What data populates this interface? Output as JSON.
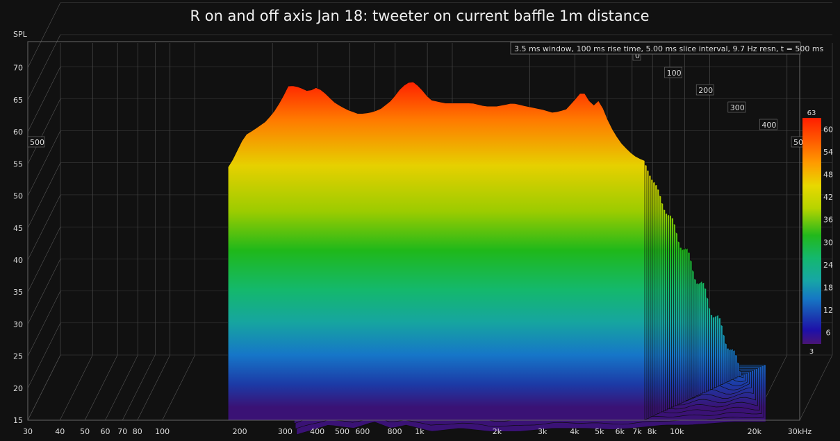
{
  "chart_data": {
    "type": "waterfall",
    "title": "R on and off axis Jan 18: tweeter on current baffle 1m distance",
    "ylabel": "SPL",
    "info_text": "3.5 ms window, 100 ms rise time, 5.00 ms slice interval, 9.7 Hz resn, t = 500 ms",
    "x_unit": "kHz",
    "x_scale": "log",
    "xlim": [
      30,
      30000
    ],
    "ylim": [
      15,
      73
    ],
    "x_ticks": [
      {
        "v": 30,
        "label": "30"
      },
      {
        "v": 40,
        "label": "40"
      },
      {
        "v": 50,
        "label": "50"
      },
      {
        "v": 60,
        "label": "60"
      },
      {
        "v": 70,
        "label": "70"
      },
      {
        "v": 80,
        "label": "80"
      },
      {
        "v": 100,
        "label": "100"
      },
      {
        "v": 200,
        "label": "200"
      },
      {
        "v": 300,
        "label": "300"
      },
      {
        "v": 400,
        "label": "400"
      },
      {
        "v": 500,
        "label": "500"
      },
      {
        "v": 600,
        "label": "600"
      },
      {
        "v": 800,
        "label": "800"
      },
      {
        "v": 1000,
        "label": "1k"
      },
      {
        "v": 2000,
        "label": "2k"
      },
      {
        "v": 3000,
        "label": "3k"
      },
      {
        "v": 4000,
        "label": "4k"
      },
      {
        "v": 5000,
        "label": "5k"
      },
      {
        "v": 6000,
        "label": "6k"
      },
      {
        "v": 7000,
        "label": "7k"
      },
      {
        "v": 8000,
        "label": "8k"
      },
      {
        "v": 10000,
        "label": "10k"
      },
      {
        "v": 20000,
        "label": "20k"
      },
      {
        "v": 30000,
        "label": "30kHz"
      }
    ],
    "y_ticks": [
      15,
      20,
      25,
      30,
      35,
      40,
      45,
      50,
      55,
      60,
      65,
      70
    ],
    "time_ticks": [
      {
        "t": 0,
        "label": "0"
      },
      {
        "t": 100,
        "label": "100"
      },
      {
        "t": 200,
        "label": "200"
      },
      {
        "t": 300,
        "label": "300"
      },
      {
        "t": 400,
        "label": "400"
      },
      {
        "t": 500,
        "label": "500"
      }
    ],
    "time_range_ms": [
      0,
      500
    ],
    "slice_interval_ms": 5,
    "colorbar": {
      "min": 3,
      "max": 63,
      "ticks": [
        6,
        12,
        18,
        24,
        30,
        36,
        42,
        48,
        54,
        60
      ],
      "top_label": "63",
      "bottom_label": "3"
    },
    "front_slice": {
      "freq": [
        180,
        190,
        200,
        210,
        230,
        250,
        270,
        290,
        310,
        340,
        370,
        400,
        430,
        470,
        520,
        580,
        640,
        700,
        780,
        850,
        930,
        1000,
        1100,
        1250,
        1400,
        1600,
        1800,
        2000,
        2300,
        2600,
        3000,
        3300,
        3700,
        4000,
        4300,
        4700,
        5000,
        5500,
        6000,
        6500,
        7000,
        7500
      ],
      "spl": [
        54.5,
        56,
        58,
        59.5,
        60.5,
        61.5,
        63,
        65,
        67.3,
        67,
        66.3,
        67,
        66,
        64.5,
        63.5,
        62.8,
        63,
        63.5,
        65,
        67,
        68,
        67,
        65,
        64.5,
        64.5,
        64.5,
        64,
        64,
        64.5,
        64,
        63.5,
        63,
        63.5,
        65,
        66.5,
        64,
        65,
        61,
        58.5,
        57,
        56,
        55.5
      ]
    },
    "back_slice": {
      "freq": [
        300,
        400,
        500,
        600,
        700,
        800,
        900,
        1000,
        1300,
        1700,
        2200,
        3000,
        4000,
        5000,
        6000,
        8000,
        10000,
        15000,
        20000
      ],
      "spl": [
        17.5,
        19,
        18.5,
        19.5,
        18.5,
        19,
        18.5,
        18,
        18.5,
        18,
        18,
        18.5,
        18.5,
        18.3,
        18.5,
        19,
        19,
        19.5,
        19.5
      ]
    }
  }
}
